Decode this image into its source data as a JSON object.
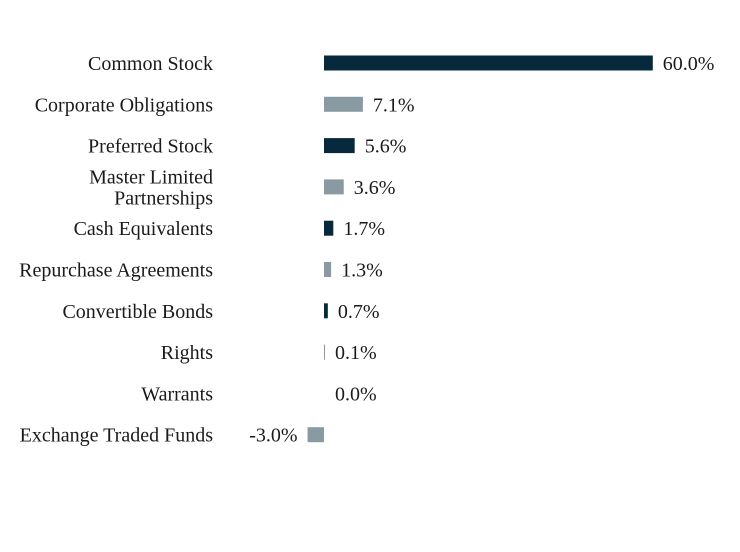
{
  "chart_data": {
    "type": "bar",
    "orientation": "horizontal",
    "title": "",
    "xlabel": "",
    "ylabel": "",
    "categories": [
      "Common Stock",
      "Corporate Obligations",
      "Preferred Stock",
      "Master Limited Partnerships",
      "Cash Equivalents",
      "Repurchase Agreements",
      "Convertible Bonds",
      "Rights",
      "Warrants",
      "Exchange Traded Funds"
    ],
    "category_label_lines": [
      [
        "Common Stock"
      ],
      [
        "Corporate Obligations"
      ],
      [
        "Preferred Stock"
      ],
      [
        "Master Limited",
        "Partnerships"
      ],
      [
        "Cash Equivalents"
      ],
      [
        "Repurchase Agreements"
      ],
      [
        "Convertible Bonds"
      ],
      [
        "Rights"
      ],
      [
        "Warrants"
      ],
      [
        "Exchange Traded Funds"
      ]
    ],
    "values": [
      60.0,
      7.1,
      5.6,
      3.6,
      1.7,
      1.3,
      0.7,
      0.1,
      0.0,
      -3.0
    ],
    "value_labels": [
      "60.0%",
      "7.1%",
      "5.6%",
      "3.6%",
      "1.7%",
      "1.3%",
      "0.7%",
      "0.1%",
      "0.0%",
      "-3.0%"
    ],
    "colors": [
      "#062a3b",
      "#8a9aa2",
      "#062a3b",
      "#8a9aa2",
      "#062a3b",
      "#8a9aa2",
      "#062a3b",
      "#8a9aa2",
      "#062a3b",
      "#8a9aa2"
    ],
    "grid": false,
    "legend": "none"
  }
}
